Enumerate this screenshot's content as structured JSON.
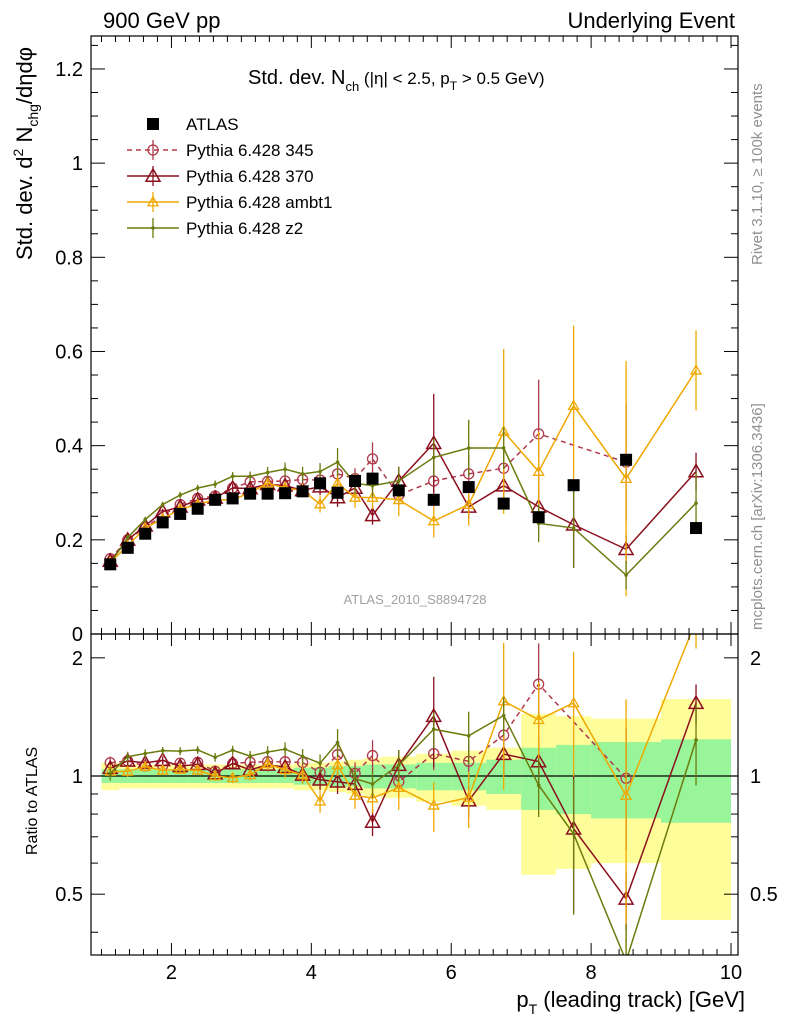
{
  "header": {
    "left": "900 GeV pp",
    "right": "Underlying Event"
  },
  "side_text": {
    "rivet": "Rivet 3.1.10, ≥ 100k events",
    "mcplots": "mcplots.cern.ch [arXiv:1306.3436]"
  },
  "analysis_label": "ATLAS_2010_S8894728",
  "title_parts": {
    "a": "Std. dev. N",
    "a_sub": "ch",
    "b": " (|η| < 2.5, p",
    "b_sub": "T",
    "c": " > 0.5 GeV)"
  },
  "ylabel_parts": {
    "a": "Std. dev. d",
    "a_sup": "2",
    "b": " N",
    "b_sub": "chg",
    "c": "/dηdφ"
  },
  "xlabel_parts": {
    "a": "p",
    "a_sub": "T",
    "b": " (leading track) [GeV]"
  },
  "ratio_ylabel": "Ratio to ATLAS",
  "colors": {
    "atlas": "#000000",
    "p345": "#b03a4c",
    "p370": "#8b0f1e",
    "ambt1": "#f0a800",
    "z2": "#6b7b0e",
    "band_inner": "#99f599",
    "band_outer": "#fdfd99"
  },
  "chart_data": {
    "type": "scatter",
    "title": "Std. dev. Nch (|η| < 2.5, pT > 0.5 GeV)",
    "xlabel": "pT (leading track) [GeV]",
    "ylabel": "Std. dev. d2 Nchg/dηdφ",
    "xlim": [
      0.85,
      10.1
    ],
    "ylim_main": [
      0,
      1.27
    ],
    "ylim_ratio": [
      0.35,
      2.3
    ],
    "xticks": [
      2,
      4,
      6,
      8,
      10
    ],
    "yticks_main": [
      0,
      0.2,
      0.4,
      0.6,
      0.8,
      1,
      1.2
    ],
    "yticks_ratio": [
      0.5,
      1,
      2
    ],
    "legend_position": "top-left",
    "grid": false,
    "bins": [
      [
        1.0,
        1.25
      ],
      [
        1.25,
        1.5
      ],
      [
        1.5,
        1.75
      ],
      [
        1.75,
        2.0
      ],
      [
        2.0,
        2.25
      ],
      [
        2.25,
        2.5
      ],
      [
        2.5,
        2.75
      ],
      [
        2.75,
        3.0
      ],
      [
        3.0,
        3.25
      ],
      [
        3.25,
        3.5
      ],
      [
        3.5,
        3.75
      ],
      [
        3.75,
        4.0
      ],
      [
        4.0,
        4.25
      ],
      [
        4.25,
        4.5
      ],
      [
        4.5,
        4.75
      ],
      [
        4.75,
        5.0
      ],
      [
        5.0,
        5.5
      ],
      [
        5.5,
        6.0
      ],
      [
        6.0,
        6.5
      ],
      [
        6.5,
        7.0
      ],
      [
        7.0,
        7.5
      ],
      [
        7.5,
        8.0
      ],
      [
        8.0,
        9.0
      ],
      [
        9.0,
        10.0
      ]
    ],
    "x": [
      1.125,
      1.375,
      1.625,
      1.875,
      2.125,
      2.375,
      2.625,
      2.875,
      3.125,
      3.375,
      3.625,
      3.875,
      4.125,
      4.375,
      4.625,
      4.875,
      5.25,
      5.75,
      6.25,
      6.75,
      7.25,
      7.75,
      8.5,
      9.5
    ],
    "atlas": {
      "name": "ATLAS",
      "values": [
        0.148,
        0.183,
        0.213,
        0.237,
        0.255,
        0.266,
        0.285,
        0.288,
        0.298,
        0.298,
        0.299,
        0.303,
        0.32,
        0.3,
        0.325,
        0.33,
        0.305,
        0.285,
        0.312,
        0.277,
        0.248,
        0.316,
        0.37,
        0.225
      ],
      "band_inner": [
        0.04,
        0.04,
        0.04,
        0.04,
        0.04,
        0.04,
        0.04,
        0.04,
        0.04,
        0.04,
        0.04,
        0.05,
        0.05,
        0.06,
        0.06,
        0.07,
        0.07,
        0.08,
        0.08,
        0.1,
        0.18,
        0.2,
        0.22,
        0.24
      ],
      "band_outer": [
        0.08,
        0.07,
        0.07,
        0.07,
        0.07,
        0.07,
        0.07,
        0.07,
        0.07,
        0.07,
        0.07,
        0.08,
        0.08,
        0.09,
        0.1,
        0.11,
        0.12,
        0.14,
        0.16,
        0.18,
        0.44,
        0.42,
        0.4,
        0.57
      ]
    },
    "series": [
      {
        "name": "Pythia 6.428 345",
        "marker": "circle-open",
        "dashed": true,
        "values": [
          0.16,
          0.2,
          0.226,
          0.252,
          0.275,
          0.288,
          0.293,
          0.31,
          0.323,
          0.324,
          0.325,
          0.328,
          0.327,
          0.34,
          0.33,
          0.372,
          0.295,
          0.325,
          0.34,
          0.352,
          0.425,
          null,
          0.365,
          null
        ],
        "errors": [
          0.006,
          0.006,
          0.006,
          0.006,
          0.007,
          0.007,
          0.008,
          0.009,
          0.01,
          0.012,
          0.014,
          0.015,
          0.018,
          0.02,
          0.022,
          0.035,
          0.025,
          0.03,
          0.04,
          0.05,
          0.115,
          null,
          0.125,
          null
        ]
      },
      {
        "name": "Pythia 6.428 370",
        "marker": "triangle-open",
        "dashed": false,
        "values": [
          0.155,
          0.2,
          0.23,
          0.26,
          0.27,
          0.285,
          0.289,
          0.31,
          0.309,
          0.318,
          0.315,
          0.305,
          0.313,
          0.29,
          0.31,
          0.252,
          0.325,
          0.405,
          0.27,
          0.315,
          0.27,
          0.232,
          0.18,
          0.345
        ],
        "errors": [
          0.006,
          0.006,
          0.006,
          0.006,
          0.007,
          0.007,
          0.008,
          0.008,
          0.01,
          0.012,
          0.014,
          0.015,
          0.018,
          0.02,
          0.022,
          0.02,
          0.03,
          0.105,
          0.025,
          0.04,
          0.04,
          0.09,
          0.03,
          0.04
        ]
      },
      {
        "name": "Pythia 6.428 ambt1",
        "marker": "triangle-open-small",
        "dashed": false,
        "values": [
          0.152,
          0.188,
          0.225,
          0.245,
          0.265,
          0.275,
          0.285,
          0.285,
          0.3,
          0.32,
          0.31,
          0.305,
          0.276,
          0.32,
          0.29,
          0.29,
          0.285,
          0.24,
          0.275,
          0.43,
          0.345,
          0.485,
          0.33,
          0.56
        ]
      },
      {
        "name": "Pythia 6.428 z2",
        "marker": "dot",
        "dashed": false,
        "values": [
          0.15,
          0.205,
          0.243,
          0.275,
          0.295,
          0.31,
          0.318,
          0.335,
          0.335,
          0.343,
          0.35,
          0.34,
          0.345,
          0.365,
          0.32,
          0.315,
          0.325,
          0.375,
          0.395,
          0.395,
          0.235,
          0.225,
          0.125,
          0.278
        ]
      }
    ],
    "ambt1_errors": [
      0.006,
      0.006,
      0.006,
      0.006,
      0.007,
      0.007,
      0.008,
      0.009,
      0.01,
      0.012,
      0.014,
      0.015,
      0.018,
      0.02,
      0.022,
      0.025,
      0.035,
      0.035,
      0.045,
      0.175,
      0.085,
      0.17,
      0.25,
      0.085
    ],
    "z2_errors": [
      0.006,
      0.006,
      0.006,
      0.006,
      0.007,
      0.007,
      0.008,
      0.009,
      0.01,
      0.012,
      0.014,
      0.015,
      0.018,
      0.03,
      0.022,
      0.025,
      0.03,
      0.04,
      0.06,
      0.045,
      0.04,
      0.085,
      0.03,
      0.065
    ]
  }
}
